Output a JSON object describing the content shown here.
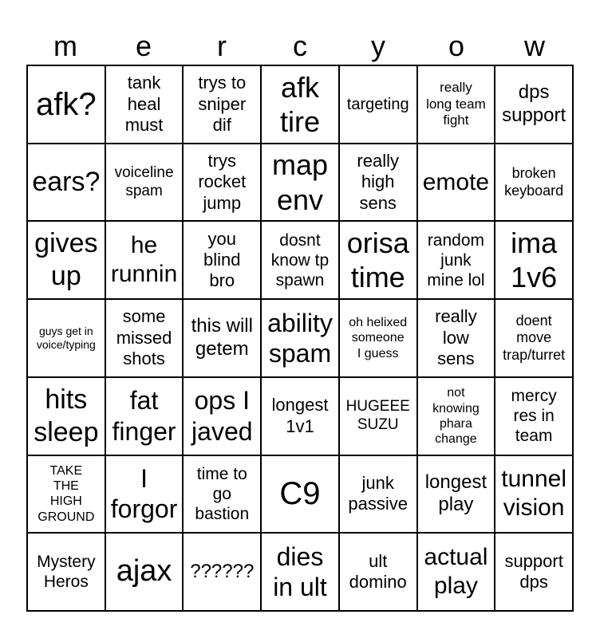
{
  "header": [
    "m",
    "e",
    "r",
    "c",
    "y",
    "o",
    "w"
  ],
  "cells": [
    [
      "afk?",
      "tank\nheal\nmust",
      "trys to\nsniper\ndif",
      "afk\ntire",
      "targeting",
      "really\nlong team\nfight",
      "dps\nsupport"
    ],
    [
      "ears?",
      "voiceline\nspam",
      "trys\nrocket\njump",
      "map\nenv",
      "really\nhigh\nsens",
      "emote",
      "broken\nkeyboard"
    ],
    [
      "gives\nup",
      "he\nrunnin",
      "you\nblind\nbro",
      "dosnt\nknow tp\nspawn",
      "orisa\ntime",
      "random\njunk\nmine lol",
      "ima\n1v6"
    ],
    [
      "guys get in\nvoice/typing",
      "some\nmissed\nshots",
      "this will\ngetem",
      "ability\nspam",
      "oh helixed\nsomeone\nI guess",
      "really\nlow\nsens",
      "doent\nmove\ntrap/turret"
    ],
    [
      "hits\nsleep",
      "fat\nfinger",
      "ops I\njaved",
      "longest\n1v1",
      "HUGEEE\nSUZU",
      "not\nknowing\nphara\nchange",
      "mercy\nres in\nteam"
    ],
    [
      "TAKE\nTHE\nHIGH\nGROUND",
      "I\nforgor",
      "time to\ngo\nbastion",
      "C9",
      "junk\npassive",
      "longest\nplay",
      "tunnel\nvision"
    ],
    [
      "Mystery\nHeros",
      "ajax",
      "??????",
      "dies\nin ult",
      "ult\ndomino",
      "actual\nplay",
      "support\ndps"
    ]
  ]
}
